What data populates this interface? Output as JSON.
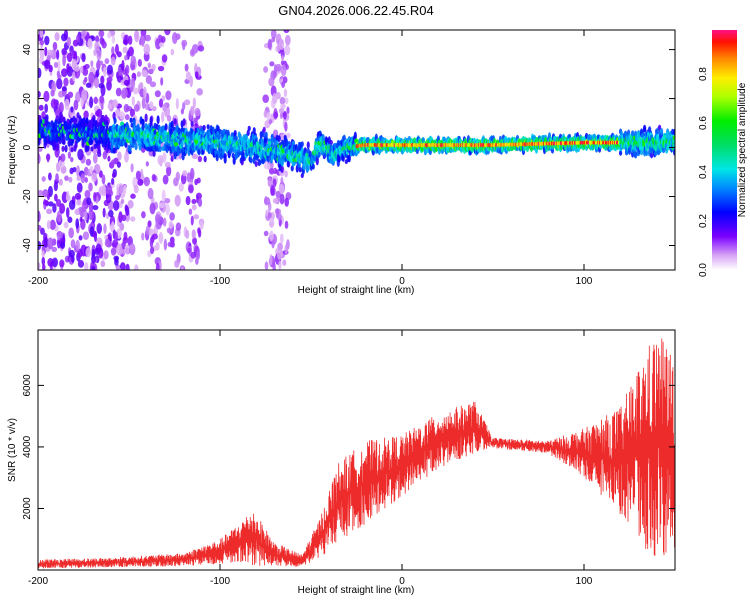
{
  "title": "GN04.2026.006.22.45.R04",
  "chart_data": [
    {
      "type": "heatmap",
      "name": "spectrogram",
      "xlabel": "Height of straight line (km)",
      "ylabel": "Frequency (Hz)",
      "xlim": [
        -200,
        150
      ],
      "ylim": [
        -50,
        48
      ],
      "xticks": [
        -200,
        -100,
        0,
        100
      ],
      "yticks": [
        -40,
        -20,
        0,
        20,
        40
      ],
      "colorbar": {
        "label": "Normalized spectral amplitude",
        "range": [
          0.0,
          0.98
        ],
        "ticks": [
          0.0,
          0.2,
          0.4,
          0.6,
          0.8
        ]
      },
      "band_center_hz": [
        {
          "x": -180,
          "y": 6
        },
        {
          "x": -150,
          "y": 5
        },
        {
          "x": -120,
          "y": 3
        },
        {
          "x": -100,
          "y": 2
        },
        {
          "x": -80,
          "y": 0
        },
        {
          "x": -60,
          "y": -3
        },
        {
          "x": -50,
          "y": -6
        },
        {
          "x": -45,
          "y": 2
        },
        {
          "x": -38,
          "y": -3
        },
        {
          "x": -30,
          "y": 0
        },
        {
          "x": -20,
          "y": 1
        },
        {
          "x": 0,
          "y": 1
        },
        {
          "x": 50,
          "y": 1
        },
        {
          "x": 100,
          "y": 2
        },
        {
          "x": 150,
          "y": 2
        }
      ]
    },
    {
      "type": "line",
      "name": "snr",
      "xlabel": "Height of straight line (km)",
      "ylabel": "SNR (10 * v/v)",
      "xlim": [
        -200,
        150
      ],
      "ylim": [
        0,
        7800
      ],
      "xticks": [
        -200,
        -100,
        0,
        100
      ],
      "yticks": [
        2000,
        4000,
        6000
      ],
      "series": [
        {
          "name": "SNR",
          "color": "#ee2b2b",
          "envelope": [
            {
              "x": -200,
              "lo": 50,
              "hi": 350
            },
            {
              "x": -160,
              "lo": 80,
              "hi": 400
            },
            {
              "x": -120,
              "lo": 120,
              "hi": 550
            },
            {
              "x": -100,
              "lo": 200,
              "hi": 1000
            },
            {
              "x": -90,
              "lo": 250,
              "hi": 1500
            },
            {
              "x": -82,
              "lo": 150,
              "hi": 2000
            },
            {
              "x": -70,
              "lo": 100,
              "hi": 900
            },
            {
              "x": -55,
              "lo": 100,
              "hi": 500
            },
            {
              "x": -45,
              "lo": 400,
              "hi": 1700
            },
            {
              "x": -35,
              "lo": 900,
              "hi": 3500
            },
            {
              "x": -20,
              "lo": 1500,
              "hi": 4200
            },
            {
              "x": 0,
              "lo": 2400,
              "hi": 4400
            },
            {
              "x": 20,
              "lo": 3300,
              "hi": 5100
            },
            {
              "x": 40,
              "lo": 3800,
              "hi": 5500
            },
            {
              "x": 50,
              "lo": 3950,
              "hi": 4300
            },
            {
              "x": 80,
              "lo": 3800,
              "hi": 4200
            },
            {
              "x": 100,
              "lo": 3000,
              "hi": 4600
            },
            {
              "x": 120,
              "lo": 1800,
              "hi": 5300
            },
            {
              "x": 135,
              "lo": 600,
              "hi": 7300
            },
            {
              "x": 142,
              "lo": 300,
              "hi": 7800
            },
            {
              "x": 150,
              "lo": 500,
              "hi": 6800
            }
          ]
        }
      ]
    }
  ]
}
